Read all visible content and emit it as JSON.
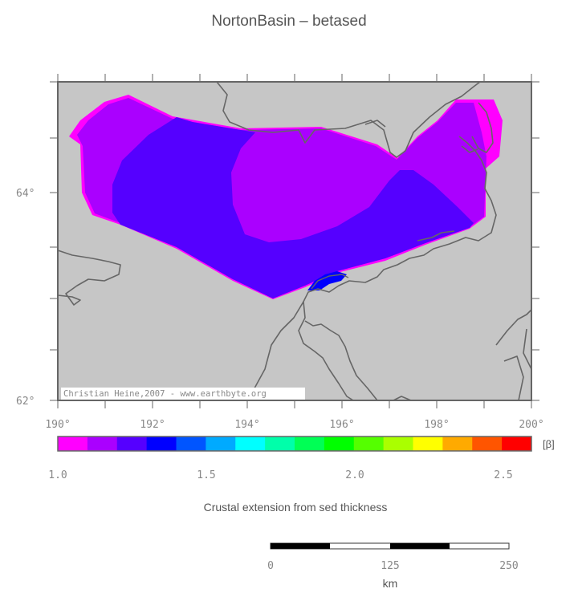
{
  "title": "NortonBasin – betased",
  "map": {
    "lat_labels": [
      "64°",
      "62°"
    ],
    "lon_labels": [
      "190°",
      "192°",
      "194°",
      "196°",
      "198°",
      "200°"
    ],
    "credit": "Christian Heine,2007 - www.earthbyte.org",
    "land_color": "#c6c6c6",
    "coast_color": "#666666"
  },
  "colorbar": {
    "colors": [
      "#ff00ff",
      "#aa00ff",
      "#5500ff",
      "#0000ff",
      "#0055ff",
      "#00aaff",
      "#00ffff",
      "#00ffaa",
      "#00ff55",
      "#00ff00",
      "#55ff00",
      "#aaff00",
      "#ffff00",
      "#ffaa00",
      "#ff5500",
      "#ff0000"
    ],
    "tick_labels": [
      "1.0",
      "1.5",
      "2.0",
      "2.5"
    ],
    "unit": "[β]",
    "caption": "Crustal extension from sed thickness"
  },
  "scalebar": {
    "labels": [
      "0",
      "125",
      "250"
    ],
    "unit": "km"
  }
}
